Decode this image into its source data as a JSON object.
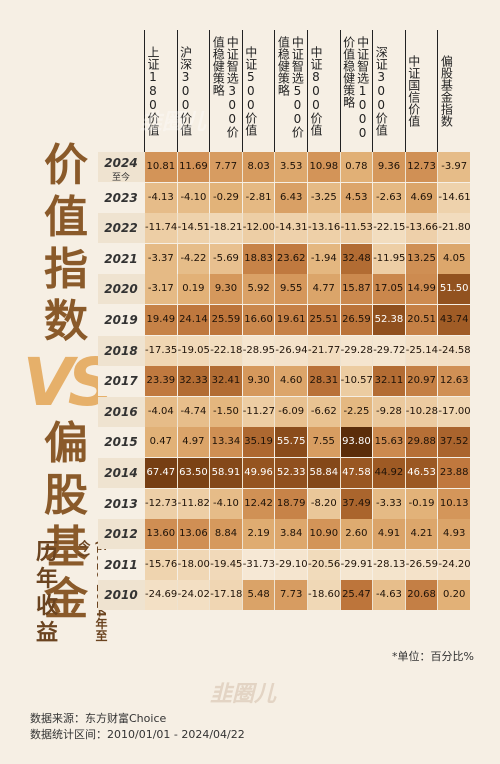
{
  "title_chars": [
    "价",
    "值",
    "指",
    "数"
  ],
  "title_vs": "VS",
  "title_chars2": [
    "偏",
    "股",
    "基",
    "金"
  ],
  "subtitle_chars": [
    "历",
    "年",
    "收",
    "益"
  ],
  "subtitle_range": "(2010-2024年至今)",
  "unit_note": "*单位：百分比%",
  "source_line": "数据来源：东方财富Choice",
  "range_line": "数据统计区间：2010/01/01 - 2024/04/22",
  "watermarks": [
    "韭圈儿",
    "韭圈儿"
  ],
  "chart_data": {
    "type": "table",
    "columns": [
      "上证180价值",
      "沪深300价值",
      "中证智选300价值稳健策略",
      "中证500价值",
      "中证智选500价值稳健策略",
      "中证800价值",
      "中证智选1000价值稳健策略",
      "深证300价值",
      "中证国信价值",
      "偏股基金指数"
    ],
    "rows": [
      {
        "year": "2024",
        "year_note": "至今",
        "values": [
          10.81,
          11.69,
          7.77,
          8.03,
          3.53,
          10.98,
          0.78,
          9.36,
          12.73,
          -3.97
        ]
      },
      {
        "year": "2023",
        "values": [
          -4.13,
          -4.1,
          -0.29,
          -2.81,
          6.43,
          -3.25,
          4.53,
          -2.63,
          4.69,
          -14.61
        ]
      },
      {
        "year": "2022",
        "values": [
          -11.74,
          -14.51,
          -18.21,
          -12.0,
          -14.31,
          -13.16,
          -11.53,
          -22.15,
          -13.66,
          -21.8
        ]
      },
      {
        "year": "2021",
        "values": [
          -3.37,
          -4.22,
          -5.69,
          18.83,
          23.62,
          -1.94,
          32.48,
          -11.95,
          13.25,
          4.05
        ]
      },
      {
        "year": "2020",
        "values": [
          -3.17,
          0.19,
          9.3,
          5.92,
          9.55,
          4.77,
          15.87,
          17.05,
          14.99,
          51.5
        ]
      },
      {
        "year": "2019",
        "values": [
          19.49,
          24.14,
          25.59,
          16.6,
          19.61,
          25.51,
          26.59,
          52.38,
          20.51,
          43.74
        ]
      },
      {
        "year": "2018",
        "values": [
          -17.35,
          -19.05,
          -22.18,
          -28.95,
          -26.94,
          -21.77,
          -29.28,
          -29.72,
          -25.14,
          -24.58
        ]
      },
      {
        "year": "2017",
        "values": [
          23.39,
          32.33,
          32.41,
          9.3,
          4.6,
          28.31,
          -10.57,
          32.11,
          20.97,
          12.63
        ]
      },
      {
        "year": "2016",
        "values": [
          -4.04,
          -4.74,
          -1.5,
          -11.27,
          -6.09,
          -6.62,
          -2.25,
          -9.28,
          -10.28,
          -17.0
        ]
      },
      {
        "year": "2015",
        "values": [
          0.47,
          4.97,
          13.34,
          35.19,
          55.75,
          7.55,
          93.8,
          15.63,
          29.88,
          37.52
        ]
      },
      {
        "year": "2014",
        "values": [
          67.47,
          63.5,
          58.91,
          49.96,
          52.33,
          58.84,
          47.58,
          44.92,
          46.53,
          23.88
        ]
      },
      {
        "year": "2013",
        "values": [
          -12.73,
          -11.82,
          -4.1,
          12.42,
          18.79,
          -8.2,
          37.49,
          -3.33,
          -0.19,
          10.13
        ]
      },
      {
        "year": "2012",
        "values": [
          13.6,
          13.06,
          8.84,
          2.19,
          3.84,
          10.9,
          2.6,
          4.91,
          4.21,
          4.93
        ]
      },
      {
        "year": "2011",
        "values": [
          -15.76,
          -18.0,
          -19.45,
          -31.73,
          -29.1,
          -20.56,
          -29.91,
          -28.13,
          -26.59,
          -24.2
        ]
      },
      {
        "year": "2010",
        "values": [
          -24.69,
          -24.02,
          -17.18,
          5.48,
          7.73,
          -18.6,
          25.47,
          -4.63,
          20.68,
          0.2
        ]
      }
    ]
  }
}
